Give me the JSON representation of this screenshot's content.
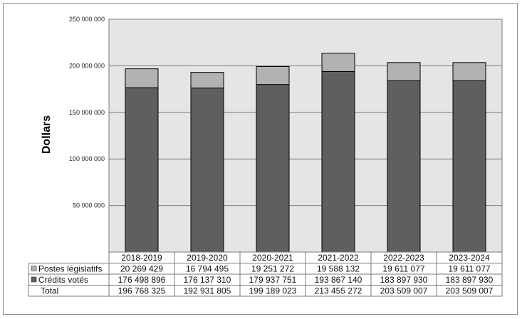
{
  "chart_data": {
    "type": "bar",
    "stacked": true,
    "ylabel": "Dollars",
    "ylim": [
      0,
      250000000
    ],
    "yticks": [
      50000000,
      100000000,
      150000000,
      200000000,
      250000000
    ],
    "ytick_labels": [
      "50 000 000",
      "100 000 000",
      "150 000 000",
      "200 000 000",
      "250 000 000"
    ],
    "categories": [
      "2018-2019",
      "2019-2020",
      "2020-2021",
      "2021-2022",
      "2022-2023",
      "2023-2024"
    ],
    "series": [
      {
        "name": "Crédits votés",
        "color": "#5f5f5f",
        "values": [
          176498896,
          176137310,
          179937751,
          193867140,
          183897930,
          183897930
        ],
        "value_labels": [
          "176 498 896",
          "176 137 310",
          "179 937 751",
          "193 867 140",
          "183 897 930",
          "183 897 930"
        ]
      },
      {
        "name": "Postes législatifs",
        "color": "#b2b2b2",
        "values": [
          20269429,
          16794495,
          19251272,
          19588132,
          19611077,
          19611077
        ],
        "value_labels": [
          "20 269 429",
          "16 794 495",
          "19 251 272",
          "19 588 132",
          "19 611 077",
          "19 611 077"
        ]
      }
    ],
    "total": {
      "name": "Total",
      "values": [
        196768325,
        192931805,
        199189023,
        213455272,
        203509007,
        203509007
      ],
      "value_labels": [
        "196 768 325",
        "192 931 805",
        "199 189 023",
        "213 455 272",
        "203 509 007",
        "203 509 007"
      ]
    },
    "grid": true,
    "plot_background": "#e5e5e5",
    "legend": "data-table-left"
  }
}
